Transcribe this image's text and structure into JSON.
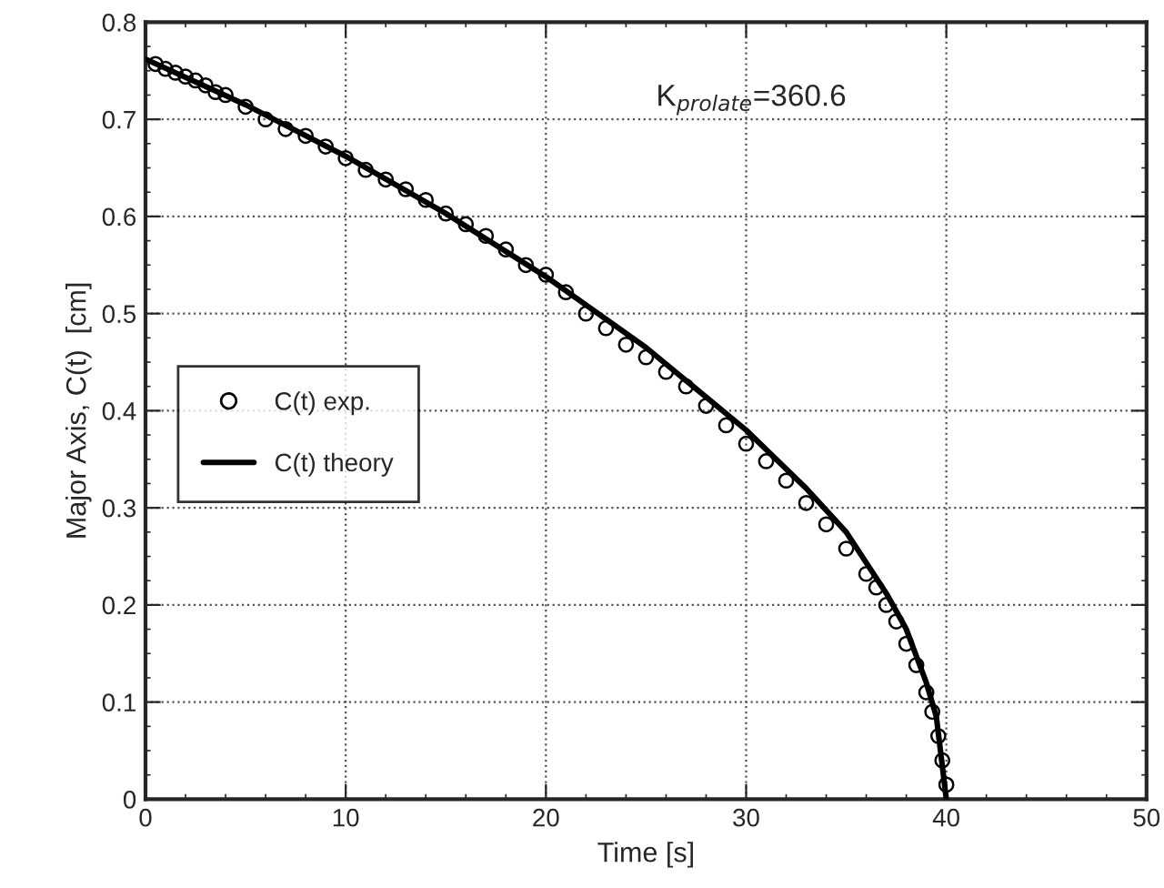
{
  "chart_data": {
    "type": "scatter",
    "xlabel": "Time [s]",
    "ylabel": "Major Axis, C(t)  [cm]",
    "xlim": [
      0,
      50
    ],
    "ylim": [
      0,
      0.8
    ],
    "xticks": [
      0,
      10,
      20,
      30,
      40,
      50
    ],
    "yticks": [
      0,
      0.1,
      0.2,
      0.3,
      0.4,
      0.5,
      0.6,
      0.7,
      0.8
    ],
    "grid": true,
    "legend": "center left",
    "annotations": [
      "K$_{prolate}$=360.6"
    ],
    "series": [
      {
        "name": "C(t) exp.",
        "marker": "circle",
        "color": "#000000",
        "x": [
          0.5,
          1,
          1.5,
          2,
          2.5,
          3,
          3.5,
          4,
          5,
          6,
          7,
          8,
          9,
          10,
          11,
          12,
          13,
          14,
          15,
          16,
          17,
          18,
          19,
          20,
          21,
          22,
          23,
          24,
          25,
          26,
          27,
          28,
          29,
          30,
          31,
          32,
          33,
          34,
          35,
          36,
          36.5,
          37,
          37.5,
          38,
          38.5,
          39,
          39.3,
          39.6,
          39.8,
          40
        ],
        "values": [
          0.757,
          0.752,
          0.748,
          0.744,
          0.74,
          0.735,
          0.728,
          0.725,
          0.713,
          0.7,
          0.69,
          0.683,
          0.672,
          0.66,
          0.648,
          0.638,
          0.628,
          0.617,
          0.603,
          0.592,
          0.58,
          0.566,
          0.55,
          0.54,
          0.522,
          0.5,
          0.485,
          0.468,
          0.455,
          0.44,
          0.425,
          0.405,
          0.385,
          0.366,
          0.348,
          0.328,
          0.305,
          0.283,
          0.258,
          0.232,
          0.218,
          0.2,
          0.183,
          0.16,
          0.138,
          0.11,
          0.09,
          0.065,
          0.04,
          0.015
        ]
      },
      {
        "name": "C(t) theory",
        "type": "line",
        "marker": "none",
        "line_style": "solid",
        "color": "#000000",
        "x": [
          0,
          5,
          10,
          15,
          20,
          25,
          30,
          33,
          35,
          37,
          38,
          39,
          39.5,
          40
        ],
        "values": [
          0.762,
          0.715,
          0.662,
          0.603,
          0.538,
          0.465,
          0.38,
          0.32,
          0.275,
          0.212,
          0.175,
          0.12,
          0.085,
          0
        ]
      }
    ]
  }
}
